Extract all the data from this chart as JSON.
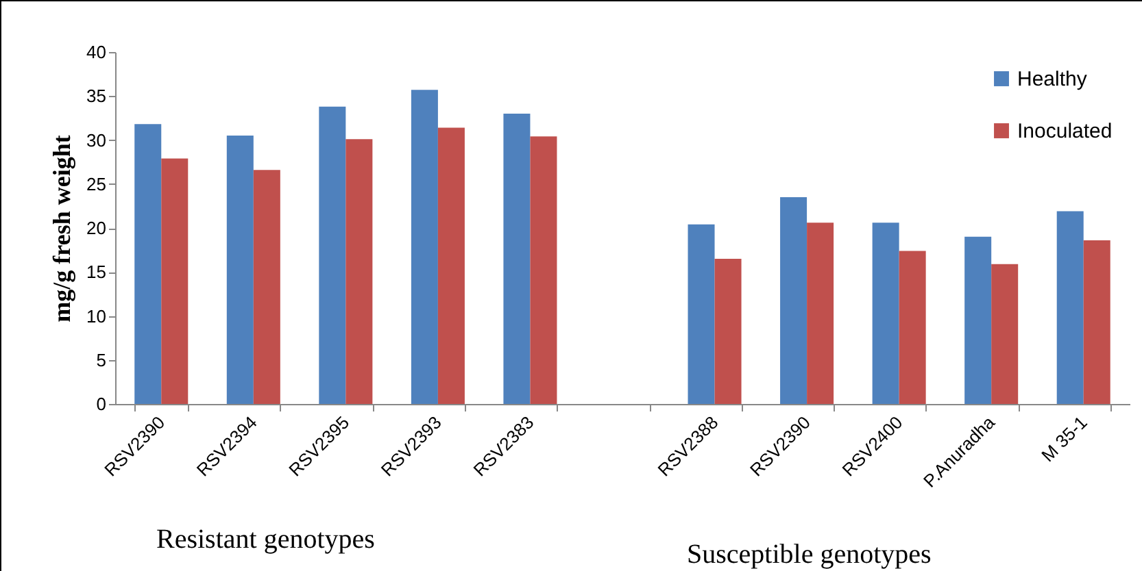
{
  "chart_data": {
    "type": "bar",
    "ylabel": "mg/g fresh weight",
    "categories": [
      "RSV2390",
      "RSV2394",
      "RSV2395",
      "RSV2393",
      "RSV2383",
      null,
      "RSV2388",
      "RSV2390",
      "RSV2400",
      "P.Anuradha",
      "M 35-1"
    ],
    "series": [
      {
        "name": "Healthy",
        "color": "#4f81bd",
        "values": [
          31.8,
          30.5,
          33.8,
          35.7,
          33.0,
          null,
          20.4,
          23.5,
          20.6,
          19.0,
          21.9
        ]
      },
      {
        "name": "Inoculated",
        "color": "#c0504d",
        "values": [
          27.9,
          26.6,
          30.1,
          31.4,
          30.4,
          null,
          16.5,
          20.6,
          17.4,
          15.9,
          18.6
        ]
      }
    ],
    "ylim": [
      0,
      40
    ],
    "yticks": [
      0,
      5,
      10,
      15,
      20,
      25,
      30,
      35,
      40
    ],
    "grid": false,
    "legend": "top right",
    "annotations": [
      {
        "text": "Resistant genotypes"
      },
      {
        "text": "Susceptible genotypes"
      }
    ]
  }
}
